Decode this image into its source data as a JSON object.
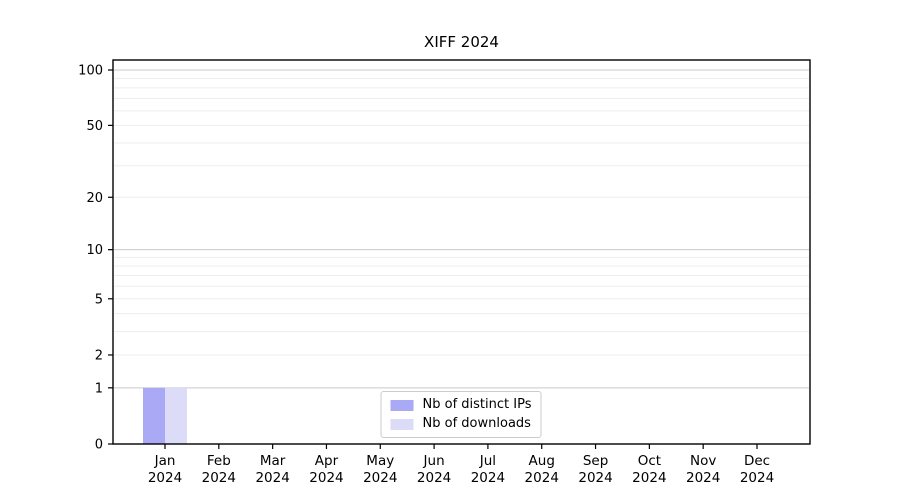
{
  "title": "XIFF 2024",
  "chart_data": {
    "type": "bar",
    "title": "XIFF 2024",
    "categories": [
      "Jan 2024",
      "Feb 2024",
      "Mar 2024",
      "Apr 2024",
      "May 2024",
      "Jun 2024",
      "Jul 2024",
      "Aug 2024",
      "Sep 2024",
      "Oct 2024",
      "Nov 2024",
      "Dec 2024"
    ],
    "series": [
      {
        "name": "Nb of distinct IPs",
        "color": "#a9a9f6",
        "values": [
          1,
          0,
          0,
          0,
          0,
          0,
          0,
          0,
          0,
          0,
          0,
          0
        ]
      },
      {
        "name": "Nb of downloads",
        "color": "#dcdcf9",
        "values": [
          1,
          0,
          0,
          0,
          0,
          0,
          0,
          0,
          0,
          0,
          0,
          0
        ]
      }
    ],
    "yscale": "log1p",
    "ylim": [
      0,
      113
    ],
    "ytick_labels": [
      0,
      1,
      2,
      5,
      10,
      20,
      50,
      100
    ],
    "major_gridlines": [
      1,
      10,
      100
    ],
    "minor_gridlines": [
      2,
      3,
      4,
      5,
      6,
      7,
      8,
      9,
      20,
      30,
      40,
      50,
      60,
      70,
      80,
      90
    ],
    "grid": "horizontal",
    "legend_position": "lower center",
    "colors": {
      "major_grid": "#c9c9c9",
      "minor_grid": "#ededed",
      "axis": "#000000",
      "text": "#000000",
      "background": "#ffffff"
    }
  }
}
